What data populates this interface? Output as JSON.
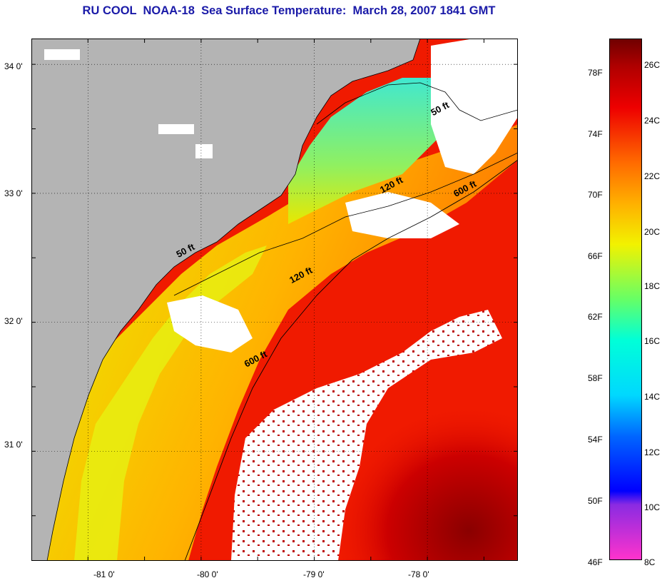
{
  "title": "RU COOL  NOAA-18  Sea Surface Temperature:  March 28, 2007 1841 GMT",
  "map": {
    "lat_range": [
      30.15,
      34.2
    ],
    "lon_range": [
      -81.5,
      -77.2
    ],
    "lat_ticks": [
      "34 0'",
      "33 0'",
      "32 0'",
      "31 0'"
    ],
    "lon_ticks": [
      "-81 0'",
      "-80 0'",
      "-79 0'",
      "-78 0'"
    ],
    "grid": "dotted",
    "colors": {
      "land": "#b4b4b4",
      "cloud": "#ffffff",
      "coastline": "#000000",
      "isobath": "#000000"
    },
    "isobath_labels": [
      {
        "text": "50 ft",
        "label_at": [
          -77.95,
          33.6
        ]
      },
      {
        "text": "50 ft",
        "label_at": [
          -80.2,
          32.5
        ]
      },
      {
        "text": "120 ft",
        "label_at": [
          -78.4,
          33.0
        ]
      },
      {
        "text": "120 ft",
        "label_at": [
          -79.2,
          32.3
        ]
      },
      {
        "text": "600 ft",
        "label_at": [
          -77.75,
          32.97
        ]
      },
      {
        "text": "600 ft",
        "label_at": [
          -79.6,
          31.65
        ]
      }
    ]
  },
  "colorbar": {
    "f_labels": [
      "78F",
      "74F",
      "70F",
      "66F",
      "62F",
      "58F",
      "54F",
      "50F",
      "46F"
    ],
    "c_labels": [
      "26C",
      "24C",
      "22C",
      "20C",
      "18C",
      "16C",
      "14C",
      "12C",
      "10C",
      "8C"
    ],
    "range_c": [
      8,
      27
    ],
    "stops": [
      {
        "c": 8,
        "color": "#ff33cc"
      },
      {
        "c": 10,
        "color": "#8a2be2"
      },
      {
        "c": 10.5,
        "color": "#0000ff"
      },
      {
        "c": 12.5,
        "color": "#0066ff"
      },
      {
        "c": 14,
        "color": "#00d8ff"
      },
      {
        "c": 16,
        "color": "#00ffd8"
      },
      {
        "c": 17.5,
        "color": "#66ff66"
      },
      {
        "c": 19.5,
        "color": "#f2f200"
      },
      {
        "c": 21,
        "color": "#ffb000"
      },
      {
        "c": 22.5,
        "color": "#ff6a00"
      },
      {
        "c": 24.5,
        "color": "#ee0000"
      },
      {
        "c": 26,
        "color": "#b00000"
      },
      {
        "c": 27,
        "color": "#700000"
      }
    ]
  }
}
